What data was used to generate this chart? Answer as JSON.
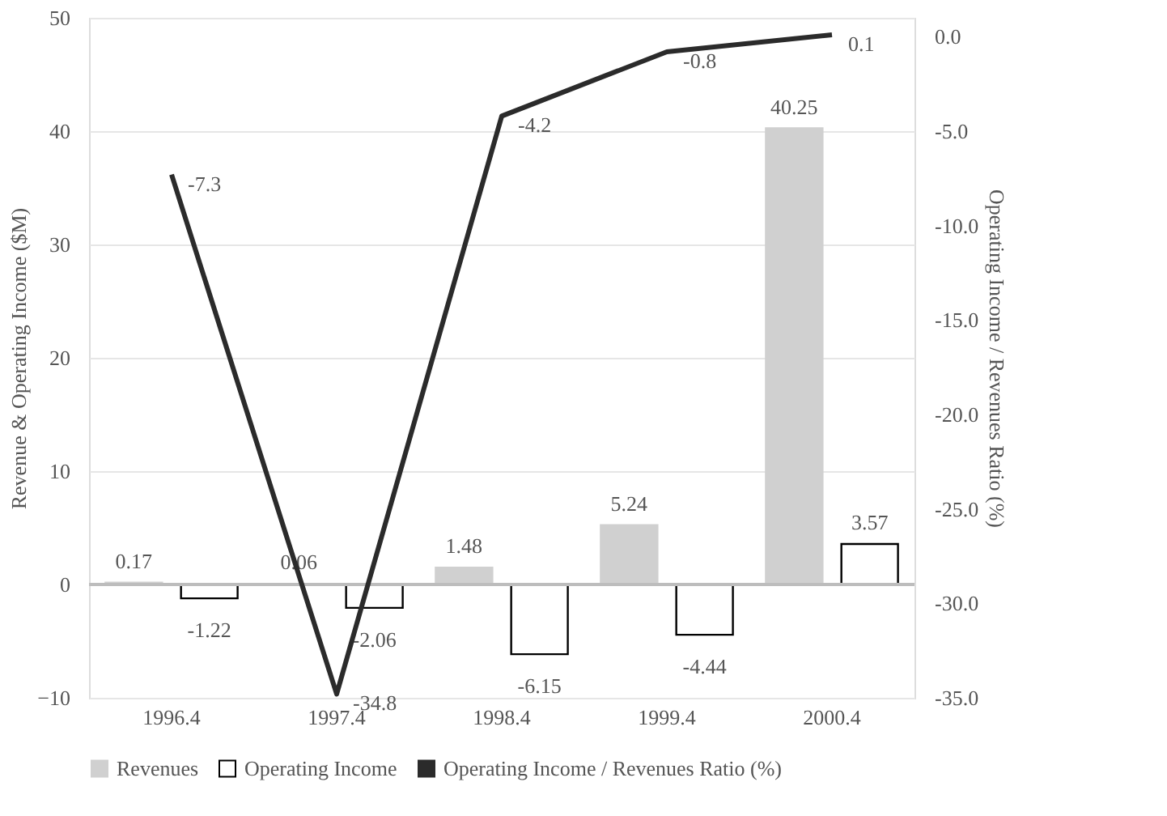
{
  "chart_data": {
    "type": "bar",
    "categories": [
      "1996.4",
      "1997.4",
      "1998.4",
      "1999.4",
      "2000.4"
    ],
    "ylabel": "Revenue & Operating Income ($M)",
    "y2label": "Operating Income / Revenues Ratio (%)",
    "ylim": [
      -10,
      50
    ],
    "yticks": [
      -10,
      0,
      10,
      20,
      30,
      40,
      50
    ],
    "y2lim": [
      -35,
      1
    ],
    "y2ticks": [
      {
        "value": -35,
        "label": "-35.0"
      },
      {
        "value": -30,
        "label": "-30.0"
      },
      {
        "value": -25,
        "label": "-25.0"
      },
      {
        "value": -20,
        "label": "-20.0"
      },
      {
        "value": -15,
        "label": "-15.0"
      },
      {
        "value": -10,
        "label": "-10.0"
      },
      {
        "value": -5,
        "label": "-5.0"
      },
      {
        "value": 0,
        "label": "0.0"
      }
    ],
    "series": [
      {
        "name": "Revenues",
        "color": "#d0d0d0",
        "values": [
          0.17,
          0.06,
          1.48,
          5.24,
          40.25
        ]
      },
      {
        "name": "Operating Income",
        "color": "#ffffff",
        "values": [
          -1.22,
          -2.06,
          -6.15,
          -4.44,
          3.57
        ]
      },
      {
        "name": "Operating Income / Revenues Ratio (%)",
        "type": "line",
        "axis": "y2",
        "color": "#2b2b2b",
        "values": [
          -7.3,
          -34.8,
          -4.2,
          -0.8,
          0.1
        ]
      }
    ],
    "data_labels": true,
    "grid": "y",
    "legend": "bottom",
    "marker": "none",
    "line_style": "solid"
  }
}
